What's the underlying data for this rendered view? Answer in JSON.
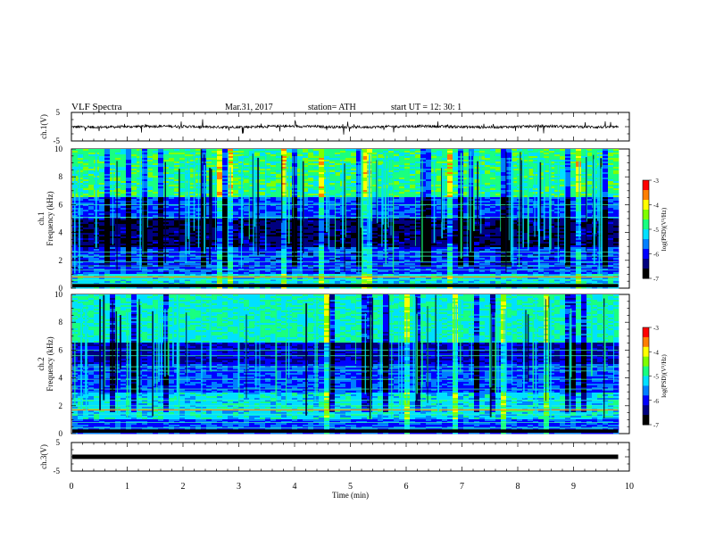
{
  "header": {
    "title": "VLF  Spectra",
    "date": "Mar.31, 2017",
    "station": "station= ATH",
    "start_ut": "start  UT  =    12: 30: 1"
  },
  "chart_data": [
    {
      "id": "ch1",
      "type": "line",
      "ylabel": "ch.1(V)",
      "yticks": [
        "5",
        "-5"
      ],
      "ylim": [
        -5,
        5
      ],
      "xlim": [
        0,
        10
      ],
      "data_extent_min": 9.8,
      "baseline": 0,
      "description_color": "#000000"
    },
    {
      "id": "ch1-spectrogram",
      "type": "heatmap",
      "ylabel": "ch.1\nFrequency  (kHz)",
      "ylabel_lines": [
        "ch.1",
        "Frequency  (kHz)"
      ],
      "yticks": [
        "0",
        "2",
        "4",
        "6",
        "8",
        "10"
      ],
      "ylim": [
        0,
        10
      ],
      "xlim": [
        0,
        10
      ],
      "data_extent_min": 9.8,
      "colorbar": {
        "label": "log(PSD)(V²/Hz)",
        "ticks": [
          "-3",
          "-4",
          "-5",
          "-6",
          "-7"
        ],
        "range": [
          -7,
          -3
        ]
      }
    },
    {
      "id": "ch2-spectrogram",
      "type": "heatmap",
      "ylabel": "ch.2\nFrequency  (kHz)",
      "ylabel_lines": [
        "ch.2",
        "Frequency  (kHz)"
      ],
      "yticks": [
        "0",
        "2",
        "4",
        "6",
        "8",
        "10"
      ],
      "ylim": [
        0,
        10
      ],
      "xlim": [
        0,
        10
      ],
      "data_extent_min": 9.8,
      "colorbar": {
        "label": "log(PSD)(V²/Hz)",
        "ticks": [
          "-3",
          "-4",
          "-5",
          "-6",
          "-7"
        ],
        "range": [
          -7,
          -3
        ]
      }
    },
    {
      "id": "ch3",
      "type": "line",
      "ylabel": "ch.3(V)",
      "yticks": [
        "5",
        "-5"
      ],
      "ylim": [
        -5,
        5
      ],
      "xlim": [
        0,
        10
      ],
      "data_extent_min": 9.8,
      "baseline": 0
    }
  ],
  "xaxis": {
    "label": "Time  (min)",
    "ticks": [
      "0",
      "1",
      "2",
      "3",
      "4",
      "5",
      "6",
      "7",
      "8",
      "9",
      "10"
    ]
  },
  "colormap": [
    "#000000",
    "#00007f",
    "#0000ff",
    "#007fff",
    "#00e0ff",
    "#19ff80",
    "#7fff00",
    "#ffff00",
    "#ff7f00",
    "#ff0000",
    "#ffffff"
  ]
}
